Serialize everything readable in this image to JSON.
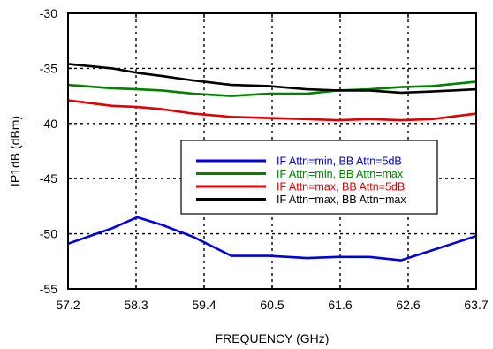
{
  "chart_data": {
    "type": "line",
    "xlabel": "FREQUENCY (GHz)",
    "ylabel": "IP1dB (dBm)",
    "xticks": [
      "57.2",
      "58.3",
      "59.4",
      "60.5",
      "61.6",
      "62.6",
      "63.7"
    ],
    "yticks": [
      "-30",
      "-35",
      "-40",
      "-45",
      "-50",
      "-55"
    ],
    "xlim": [
      57.2,
      63.7
    ],
    "ylim": [
      -55,
      -30
    ],
    "grid": "dashed",
    "legend_position": "center-right",
    "series": [
      {
        "name": "IF Attn=min, BB Attn=5dB",
        "color": "#0000dd",
        "x": [
          57.2,
          57.9,
          58.3,
          58.7,
          59.2,
          59.8,
          60.4,
          61.0,
          61.5,
          62.0,
          62.5,
          63.0,
          63.7
        ],
        "y": [
          -50.9,
          -49.5,
          -48.5,
          -49.2,
          -50.3,
          -52.0,
          -52.0,
          -52.2,
          -52.1,
          -52.1,
          -52.4,
          -51.5,
          -50.2
        ]
      },
      {
        "name": "IF Attn=min, BB Attn=max",
        "color": "#008000",
        "x": [
          57.2,
          57.9,
          58.3,
          58.7,
          59.2,
          59.8,
          60.4,
          61.0,
          61.5,
          62.0,
          62.5,
          63.0,
          63.7
        ],
        "y": [
          -36.5,
          -36.8,
          -36.9,
          -37.0,
          -37.3,
          -37.5,
          -37.3,
          -37.3,
          -37.0,
          -36.9,
          -36.7,
          -36.6,
          -36.2
        ]
      },
      {
        "name": "IF Attn=max, BB Attn=5dB",
        "color": "#e00000",
        "x": [
          57.2,
          57.9,
          58.3,
          58.7,
          59.2,
          59.8,
          60.4,
          61.0,
          61.5,
          62.0,
          62.5,
          63.0,
          63.7
        ],
        "y": [
          -37.9,
          -38.4,
          -38.5,
          -38.7,
          -39.1,
          -39.4,
          -39.5,
          -39.6,
          -39.7,
          -39.6,
          -39.7,
          -39.6,
          -39.1
        ]
      },
      {
        "name": "IF Attn=max, BB Attn=max",
        "color": "#000000",
        "x": [
          57.2,
          57.9,
          58.3,
          58.7,
          59.2,
          59.8,
          60.4,
          61.0,
          61.5,
          62.0,
          62.5,
          63.0,
          63.7
        ],
        "y": [
          -34.6,
          -35.0,
          -35.4,
          -35.7,
          -36.1,
          -36.5,
          -36.6,
          -36.9,
          -37.0,
          -37.0,
          -37.2,
          -37.1,
          -36.9
        ]
      }
    ]
  }
}
